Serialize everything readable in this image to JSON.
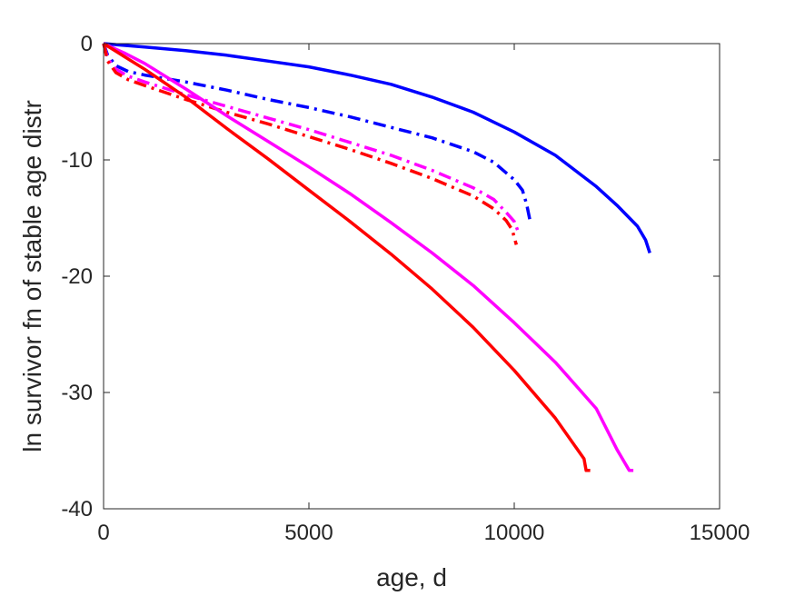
{
  "chart_data": {
    "type": "line",
    "title": "",
    "xlabel": "age, d",
    "ylabel": "ln survivor fn of stable age distr",
    "xlim": [
      0,
      15000
    ],
    "ylim": [
      -40,
      0
    ],
    "xticks": [
      0,
      5000,
      10000,
      15000
    ],
    "yticks": [
      -40,
      -30,
      -20,
      -10,
      0
    ],
    "grid": false,
    "legend": "none",
    "series": [
      {
        "color": "#0000ff",
        "style": "solid",
        "x": [
          0,
          1000,
          2000,
          3000,
          4000,
          5000,
          6000,
          7000,
          8000,
          9000,
          10000,
          11000,
          12000,
          12500,
          13000,
          13200,
          13300
        ],
        "y": [
          0,
          -0.3,
          -0.6,
          -1.0,
          -1.5,
          -2.0,
          -2.7,
          -3.5,
          -4.6,
          -5.9,
          -7.6,
          -9.6,
          -12.3,
          -13.9,
          -15.7,
          -16.9,
          -18.0
        ]
      },
      {
        "color": "#0000ff",
        "style": "dashdot",
        "x": [
          0,
          100,
          300,
          600,
          1000,
          2000,
          3000,
          4000,
          5000,
          6000,
          7000,
          8000,
          9000,
          9500,
          10000,
          10200,
          10300,
          10400
        ],
        "y": [
          0,
          -1.0,
          -1.9,
          -2.4,
          -2.7,
          -3.3,
          -4.0,
          -4.8,
          -5.5,
          -6.3,
          -7.2,
          -8.1,
          -9.3,
          -10.2,
          -11.7,
          -12.6,
          -13.8,
          -15.5
        ]
      },
      {
        "color": "#ff00ff",
        "style": "dashdot",
        "x": [
          0,
          100,
          300,
          600,
          1000,
          2000,
          3000,
          4000,
          5000,
          6000,
          7000,
          8000,
          9000,
          9500,
          9800,
          10000,
          10100
        ],
        "y": [
          0,
          -1.3,
          -2.2,
          -2.8,
          -3.3,
          -4.4,
          -5.4,
          -6.4,
          -7.4,
          -8.5,
          -9.6,
          -10.9,
          -12.4,
          -13.4,
          -14.5,
          -15.3,
          -16.2
        ]
      },
      {
        "color": "#ff0000",
        "style": "dashdot",
        "x": [
          0,
          100,
          300,
          600,
          1000,
          2000,
          3000,
          4000,
          5000,
          6000,
          7000,
          8000,
          9000,
          9500,
          9800,
          9950,
          10050
        ],
        "y": [
          0,
          -1.5,
          -2.5,
          -3.1,
          -3.6,
          -4.8,
          -5.9,
          -6.9,
          -8.0,
          -9.1,
          -10.3,
          -11.6,
          -13.1,
          -14.2,
          -15.2,
          -16.0,
          -17.3
        ]
      },
      {
        "color": "#ff00ff",
        "style": "solid",
        "x": [
          0,
          500,
          1000,
          2000,
          3000,
          4000,
          5000,
          6000,
          7000,
          8000,
          9000,
          10000,
          11000,
          12000,
          12500,
          12800,
          12900
        ],
        "y": [
          0,
          -0.8,
          -1.7,
          -3.9,
          -6.2,
          -8.4,
          -10.6,
          -12.9,
          -15.4,
          -18.0,
          -20.8,
          -24.0,
          -27.4,
          -31.4,
          -34.9,
          -36.7,
          -36.7
        ]
      },
      {
        "color": "#ff0000",
        "style": "solid",
        "x": [
          0,
          500,
          1000,
          2000,
          3000,
          4000,
          5000,
          6000,
          7000,
          8000,
          9000,
          10000,
          11000,
          11700,
          11750,
          11850
        ],
        "y": [
          0,
          -1.1,
          -2.2,
          -4.6,
          -7.3,
          -9.9,
          -12.6,
          -15.3,
          -18.1,
          -21.1,
          -24.4,
          -28.1,
          -32.2,
          -35.7,
          -36.7,
          -36.7
        ]
      }
    ]
  }
}
